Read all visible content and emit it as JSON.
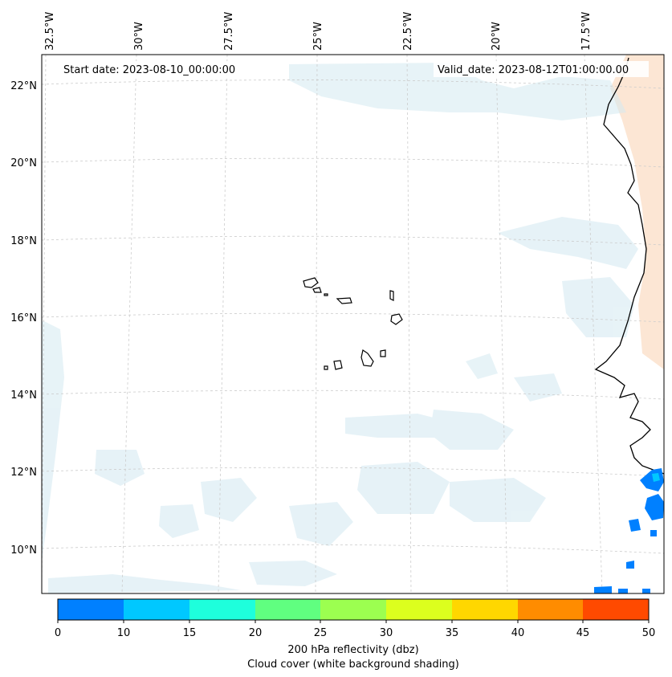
{
  "header": {
    "start_date": "Start date: 2023-08-10_00:00:00",
    "valid_date": "Valid_date: 2023-08-12T01:00:00.00"
  },
  "axes": {
    "lon_labels": [
      "32.5°W",
      "30°W",
      "27.5°W",
      "25°W",
      "22.5°W",
      "20°W",
      "17.5°W"
    ],
    "lat_labels": [
      "22°N",
      "20°N",
      "18°N",
      "16°N",
      "14°N",
      "12°N",
      "10°N"
    ]
  },
  "colorbar": {
    "ticks": [
      "0",
      "10",
      "15",
      "20",
      "25",
      "30",
      "35",
      "40",
      "45",
      "50"
    ],
    "colors": [
      "#0080ff",
      "#00c8ff",
      "#1effdc",
      "#60ff80",
      "#9cff50",
      "#dcff1e",
      "#ffd700",
      "#ff8c00",
      "#ff4a00"
    ],
    "label_line1": "200 hPa reflectivity (dbz)",
    "label_line2": "Cloud cover (white background shading)"
  },
  "colors": {
    "land_warm": "#fbe3cf",
    "cloud": "#d6ebf2",
    "coast": "#000000",
    "grid": "#cccccc"
  }
}
